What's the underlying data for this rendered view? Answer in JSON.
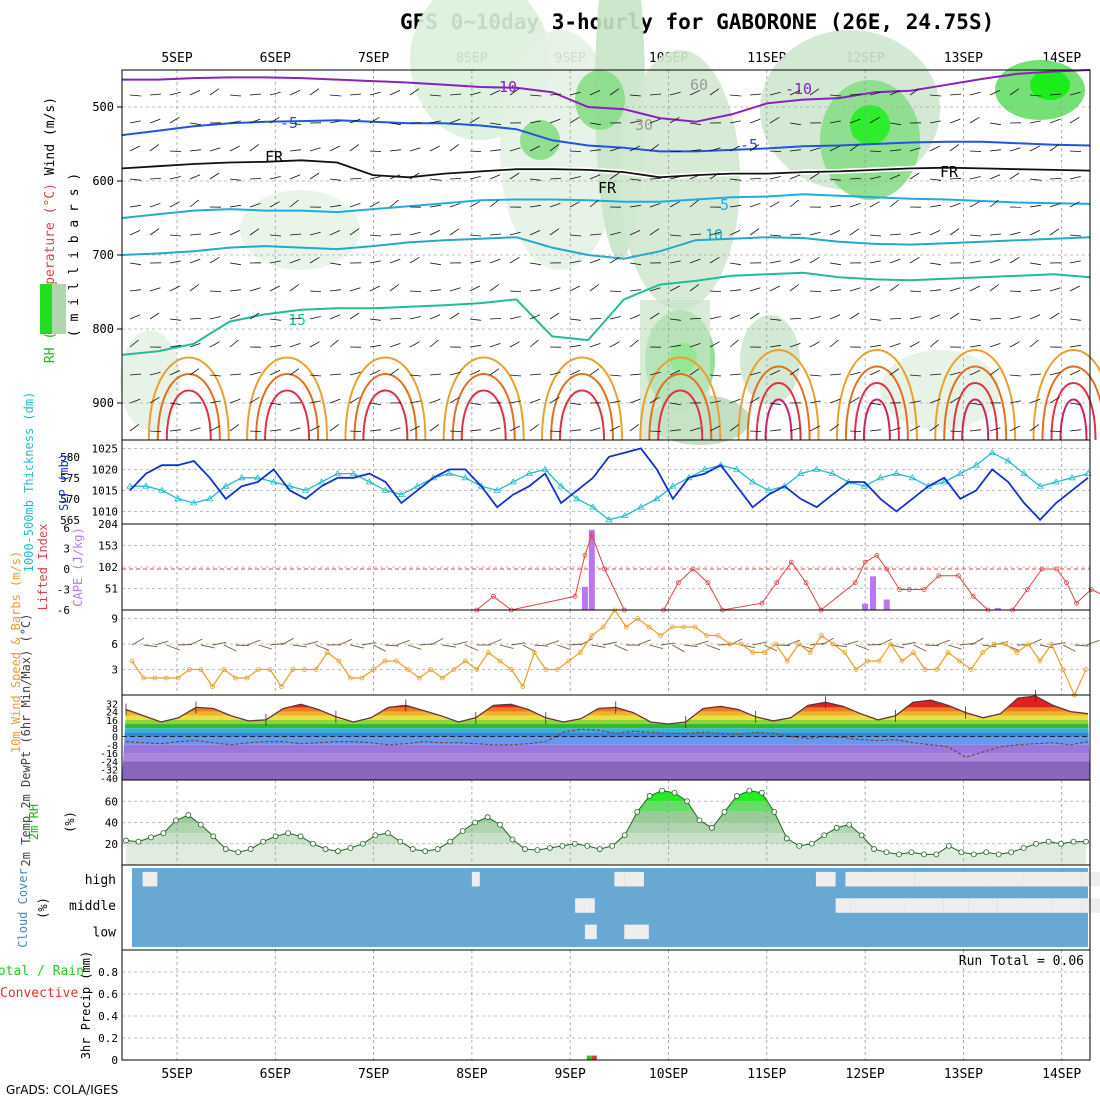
{
  "title": "GFS 0~10day 3-hourly for GABORONE (26E, 24.75S)",
  "credit": "GrADS: COLA/IGES",
  "colors": {
    "rh_green": "#22dd22",
    "rh_light": "#d8ecd8",
    "temp_purple": "#8822bb",
    "temp_blue": "#2255dd",
    "temp_cyan": "#22aadd",
    "temp_teal": "#22bbaa",
    "temp_orange": "#e8a030",
    "temp_red": "#dd3344",
    "slp": "#1133cc",
    "thickness": "#22bbcc",
    "cape": "#bb77ee",
    "li": "#dd4444",
    "wind10": "#e8a030",
    "rh2m": "#22aa22",
    "cloud": "#6aa8d4",
    "cloud_clear": "#eeeeee",
    "precip_total": "#22cc22",
    "precip_conv": "#dd3333"
  },
  "chart_data": [
    {
      "type": "heatmap",
      "panel": "upper-air",
      "ylabel_parts": [
        "RH (%)",
        "Temperature (°C)",
        "Wind (m/s)"
      ],
      "yunits": "( m i l l i b a r s )",
      "yticks": [
        500,
        600,
        700,
        800,
        900
      ],
      "ylim": [
        450,
        950
      ],
      "contour_labels": [
        "-10",
        "-10",
        "-5",
        "-5",
        "FR",
        "FR",
        "FR",
        "5",
        "10",
        "15",
        "60",
        "30"
      ],
      "contours": [
        {
          "name": "-10",
          "color": "#8822bb",
          "y": [
            463,
            463,
            461,
            460,
            460,
            461,
            463,
            465,
            467,
            470,
            473,
            474,
            480,
            500,
            503,
            515,
            520,
            510,
            495,
            490,
            488,
            480,
            478,
            470,
            462,
            455,
            452,
            450
          ]
        },
        {
          "name": "-5",
          "color": "#2255dd",
          "y": [
            538,
            532,
            526,
            522,
            520,
            519,
            518,
            520,
            522,
            522,
            525,
            530,
            545,
            552,
            555,
            560,
            560,
            558,
            556,
            553,
            552,
            550,
            548,
            547,
            547,
            549,
            551,
            552
          ]
        },
        {
          "name": "FR",
          "color": "#111111",
          "y": [
            583,
            580,
            577,
            575,
            574,
            572,
            575,
            592,
            595,
            590,
            587,
            584,
            584,
            585,
            588,
            595,
            592,
            590,
            590,
            588,
            587,
            585,
            583,
            582,
            583,
            584,
            585,
            586
          ]
        },
        {
          "name": "5",
          "color": "#22aadd",
          "y": [
            650,
            645,
            640,
            638,
            640,
            640,
            642,
            638,
            634,
            630,
            626,
            625,
            625,
            626,
            628,
            628,
            625,
            622,
            621,
            618,
            620,
            622,
            624,
            625,
            627,
            629,
            630,
            631
          ]
        },
        {
          "name": "10",
          "color": "#22aacc",
          "y": [
            700,
            698,
            695,
            690,
            688,
            690,
            692,
            688,
            683,
            680,
            678,
            676,
            690,
            700,
            705,
            695,
            680,
            678,
            676,
            677,
            682,
            685,
            686,
            684,
            682,
            680,
            678,
            676
          ]
        },
        {
          "name": "15",
          "color": "#22bb99",
          "y": [
            835,
            830,
            820,
            790,
            780,
            774,
            772,
            772,
            770,
            768,
            765,
            760,
            810,
            815,
            760,
            740,
            735,
            728,
            726,
            724,
            730,
            733,
            734,
            732,
            730,
            728,
            726,
            730
          ]
        }
      ]
    },
    {
      "type": "line",
      "panel": "slp-thickness",
      "ylabel": "SLP (mb)",
      "ylabel2": "1000-500mb Thickness (dm)",
      "ylim": [
        1007,
        1027
      ],
      "yticks": [
        1010,
        1015,
        1020,
        1025
      ],
      "ylim2": [
        564,
        584
      ],
      "yticks2": [
        565,
        570,
        575,
        580
      ],
      "series": [
        {
          "name": "SLP (mb)",
          "values": [
            1015,
            1019,
            1021,
            1021,
            1022,
            1018,
            1013,
            1016,
            1017,
            1020,
            1015,
            1013,
            1016,
            1018,
            1018,
            1019,
            1017,
            1012,
            1015,
            1018,
            1020,
            1020,
            1016,
            1011,
            1014,
            1016,
            1019,
            1012,
            1015,
            1018,
            1023,
            1024,
            1025,
            1020,
            1013,
            1018,
            1019,
            1021,
            1016,
            1011,
            1014,
            1016,
            1013,
            1011,
            1014,
            1017,
            1017,
            1013,
            1010,
            1013,
            1016,
            1018,
            1013,
            1015,
            1020,
            1017,
            1012,
            1008,
            1012,
            1015,
            1018
          ]
        },
        {
          "name": "1000-500mb Thickness (dm)",
          "values": [
            573,
            573,
            572,
            570,
            569,
            570,
            573,
            575,
            575,
            574,
            573,
            572,
            574,
            576,
            576,
            574,
            572,
            571,
            573,
            575,
            576,
            575,
            573,
            572,
            574,
            576,
            577,
            573,
            570,
            568,
            565,
            566,
            568,
            570,
            573,
            575,
            577,
            578,
            577,
            574,
            572,
            573,
            576,
            577,
            576,
            574,
            573,
            575,
            576,
            575,
            573,
            574,
            576,
            578,
            581,
            579,
            576,
            573,
            574,
            575,
            576
          ]
        }
      ]
    },
    {
      "type": "bar",
      "panel": "cape-li",
      "ylabel": "CAPE (J/kg)",
      "ylabel2": "Lifted Index",
      "ylim": [
        0,
        204
      ],
      "yticks": [
        51,
        102,
        153,
        204
      ],
      "yticks2_labels": [
        "6",
        "3",
        "0",
        "-3",
        "-6"
      ],
      "cape_values": [
        {
          "x": 4.65,
          "v": 55
        },
        {
          "x": 4.72,
          "v": 190
        },
        {
          "x": 7.5,
          "v": 15
        },
        {
          "x": 7.58,
          "v": 80
        },
        {
          "x": 7.72,
          "v": 25
        },
        {
          "x": 8.85,
          "v": 5
        }
      ],
      "lifted_index": [
        {
          "x": 3.55,
          "v": 6
        },
        {
          "x": 3.72,
          "v": 4
        },
        {
          "x": 3.9,
          "v": 6
        },
        {
          "x": 4.55,
          "v": 4
        },
        {
          "x": 4.65,
          "v": -2
        },
        {
          "x": 4.72,
          "v": -5
        },
        {
          "x": 4.85,
          "v": 0
        },
        {
          "x": 5.05,
          "v": 6
        },
        {
          "x": 5.45,
          "v": 6
        },
        {
          "x": 5.6,
          "v": 2
        },
        {
          "x": 5.75,
          "v": 0
        },
        {
          "x": 5.9,
          "v": 2
        },
        {
          "x": 6.05,
          "v": 6
        },
        {
          "x": 6.45,
          "v": 5
        },
        {
          "x": 6.6,
          "v": 2
        },
        {
          "x": 6.75,
          "v": -1
        },
        {
          "x": 6.9,
          "v": 2
        },
        {
          "x": 7.05,
          "v": 6
        },
        {
          "x": 7.4,
          "v": 2
        },
        {
          "x": 7.5,
          "v": -1
        },
        {
          "x": 7.62,
          "v": -2
        },
        {
          "x": 7.72,
          "v": 0
        },
        {
          "x": 7.85,
          "v": 3
        },
        {
          "x": 7.95,
          "v": 3
        },
        {
          "x": 8.1,
          "v": 3
        },
        {
          "x": 8.25,
          "v": 1
        },
        {
          "x": 8.45,
          "v": 1
        },
        {
          "x": 8.6,
          "v": 4
        },
        {
          "x": 8.75,
          "v": 6
        },
        {
          "x": 9.0,
          "v": 6
        },
        {
          "x": 9.15,
          "v": 3
        },
        {
          "x": 9.3,
          "v": 0
        },
        {
          "x": 9.45,
          "v": 0
        },
        {
          "x": 9.55,
          "v": 2
        },
        {
          "x": 9.65,
          "v": 5
        },
        {
          "x": 9.8,
          "v": 3
        },
        {
          "x": 9.95,
          "v": 4
        },
        {
          "x": 10.05,
          "v": 3
        },
        {
          "x": 10.25,
          "v": 6
        }
      ]
    },
    {
      "type": "line",
      "panel": "wind10m",
      "ylabel": "10m Wind Speed & Barbs (m/s)",
      "ylim": [
        0,
        10
      ],
      "yticks": [
        3,
        6,
        9
      ],
      "series": [
        {
          "name": "Speed",
          "values": [
            4,
            2,
            2,
            2,
            2,
            3,
            3,
            1,
            3,
            2,
            2,
            3,
            3,
            1,
            3,
            3,
            3,
            5,
            4,
            2,
            2,
            3,
            4,
            4,
            3,
            2,
            3,
            2,
            3,
            4,
            3,
            5,
            4,
            3,
            1,
            5,
            3,
            3,
            4,
            5,
            7,
            8,
            10,
            8,
            9,
            8,
            7,
            8,
            8,
            8,
            7,
            7,
            6,
            6,
            5,
            5,
            6,
            4,
            6,
            5,
            7,
            6,
            5,
            3,
            4,
            4,
            6,
            4,
            5,
            3,
            3,
            5,
            4,
            3,
            5,
            6,
            6,
            5,
            6,
            4,
            6,
            3,
            0,
            3
          ]
        }
      ]
    },
    {
      "type": "area",
      "panel": "temp2m",
      "ylabel": "2m Temp 2m DewPt (6hr Min/Max) (°C)",
      "ylim": [
        -42,
        40
      ],
      "yticks": [
        32,
        24,
        16,
        8,
        0,
        -8,
        -16,
        -24,
        -32,
        -40
      ],
      "ytick_labels": [
        "32",
        "24",
        "16",
        "8",
        "0",
        "-8",
        "-16",
        "-24",
        "-32",
        "-40"
      ],
      "series": [
        {
          "name": "Temperature",
          "values": [
            26,
            20,
            14,
            18,
            28,
            27,
            20,
            15,
            16,
            27,
            31,
            26,
            19,
            14,
            18,
            28,
            30,
            25,
            20,
            14,
            18,
            30,
            31,
            26,
            18,
            14,
            17,
            27,
            28,
            23,
            14,
            12,
            14,
            27,
            29,
            26,
            19,
            15,
            18,
            30,
            33,
            29,
            22,
            16,
            20,
            33,
            35,
            30,
            23,
            18,
            22,
            37,
            39,
            30,
            24,
            22
          ]
        },
        {
          "name": "DewPt",
          "values": [
            -5,
            -6,
            -7,
            -5,
            -4,
            -6,
            -8,
            -6,
            -5,
            -5,
            -7,
            -6,
            -5,
            -5,
            -6,
            -8,
            -7,
            -5,
            -6,
            -6,
            -7,
            -8,
            -8,
            -7,
            -5,
            4,
            7,
            6,
            3,
            5,
            4,
            3,
            3,
            4,
            3,
            2,
            4,
            3,
            0,
            -2,
            0,
            -1,
            -3,
            -4,
            -3,
            -6,
            -8,
            -10,
            -20,
            -15,
            -10,
            -8,
            -7,
            -6,
            -8,
            -5
          ]
        }
      ]
    },
    {
      "type": "area",
      "panel": "rh2m",
      "ylabel": "2m RH (%)",
      "ylim": [
        0,
        80
      ],
      "yticks": [
        20,
        40,
        60
      ],
      "series": [
        {
          "name": "2m RH",
          "values": [
            23,
            22,
            26,
            30,
            42,
            47,
            38,
            27,
            15,
            12,
            15,
            22,
            27,
            30,
            27,
            20,
            15,
            13,
            16,
            20,
            28,
            30,
            22,
            15,
            13,
            15,
            22,
            32,
            40,
            45,
            38,
            24,
            15,
            14,
            16,
            18,
            20,
            18,
            15,
            18,
            28,
            50,
            65,
            70,
            68,
            60,
            42,
            35,
            50,
            65,
            70,
            68,
            50,
            25,
            18,
            20,
            28,
            35,
            38,
            28,
            15,
            12,
            10,
            12,
            10,
            10,
            18,
            12,
            10,
            12,
            10,
            12,
            16,
            20,
            22,
            20,
            22,
            22
          ]
        }
      ]
    },
    {
      "type": "heatmap",
      "panel": "cloud",
      "ylabel": "Cloud Cover (%)",
      "levels": [
        "high",
        "middle",
        "low"
      ],
      "clear_high": [
        {
          "x": 0.15,
          "w": 0.15
        },
        {
          "x": 3.5,
          "w": 0.08
        },
        {
          "x": 4.95,
          "w": 0.1
        },
        {
          "x": 5.05,
          "w": 0.2
        },
        {
          "x": 7.0,
          "w": 0.2
        },
        {
          "x": 7.3,
          "w": 0.25
        },
        {
          "x": 7.55,
          "w": 0.45
        },
        {
          "x": 8.0,
          "w": 0.75
        },
        {
          "x": 8.75,
          "w": 0.35
        },
        {
          "x": 9.1,
          "w": 0.6
        },
        {
          "x": 9.7,
          "w": 0.25
        }
      ],
      "clear_middle": [
        {
          "x": 4.55,
          "w": 0.1
        },
        {
          "x": 4.65,
          "w": 0.1
        },
        {
          "x": 7.2,
          "w": 0.15
        },
        {
          "x": 7.35,
          "w": 0.2
        },
        {
          "x": 7.55,
          "w": 0.35
        },
        {
          "x": 7.9,
          "w": 0.4
        },
        {
          "x": 8.3,
          "w": 0.25
        },
        {
          "x": 8.55,
          "w": 0.3
        },
        {
          "x": 8.85,
          "w": 0.2
        },
        {
          "x": 9.05,
          "w": 0.35
        },
        {
          "x": 9.4,
          "w": 0.3
        },
        {
          "x": 9.7,
          "w": 0.25
        }
      ],
      "clear_low": [
        {
          "x": 4.65,
          "w": 0.12
        },
        {
          "x": 5.05,
          "w": 0.25
        }
      ]
    },
    {
      "type": "bar",
      "panel": "precip",
      "ylabel": "3hr Precip (mm)",
      "legend": [
        "Total / Rain",
        "Convective"
      ],
      "run_total": "Run Total = 0.06",
      "ylim": [
        0,
        1.0
      ],
      "yticks": [
        0,
        0.2,
        0.4,
        0.6,
        0.8
      ],
      "ytick_labels": [
        "0",
        "0.2",
        "0.4",
        "0.6",
        "0.8"
      ],
      "bars": [
        {
          "x": 4.72,
          "total": 0.04,
          "convective": 0.04
        }
      ]
    }
  ],
  "xaxis": {
    "date_labels": [
      "5SEP",
      "6SEP",
      "7SEP",
      "8SEP",
      "9SEP",
      "10SEP",
      "11SEP",
      "12SEP",
      "13SEP",
      "14SEP"
    ],
    "start_offset_days": 0.5
  }
}
